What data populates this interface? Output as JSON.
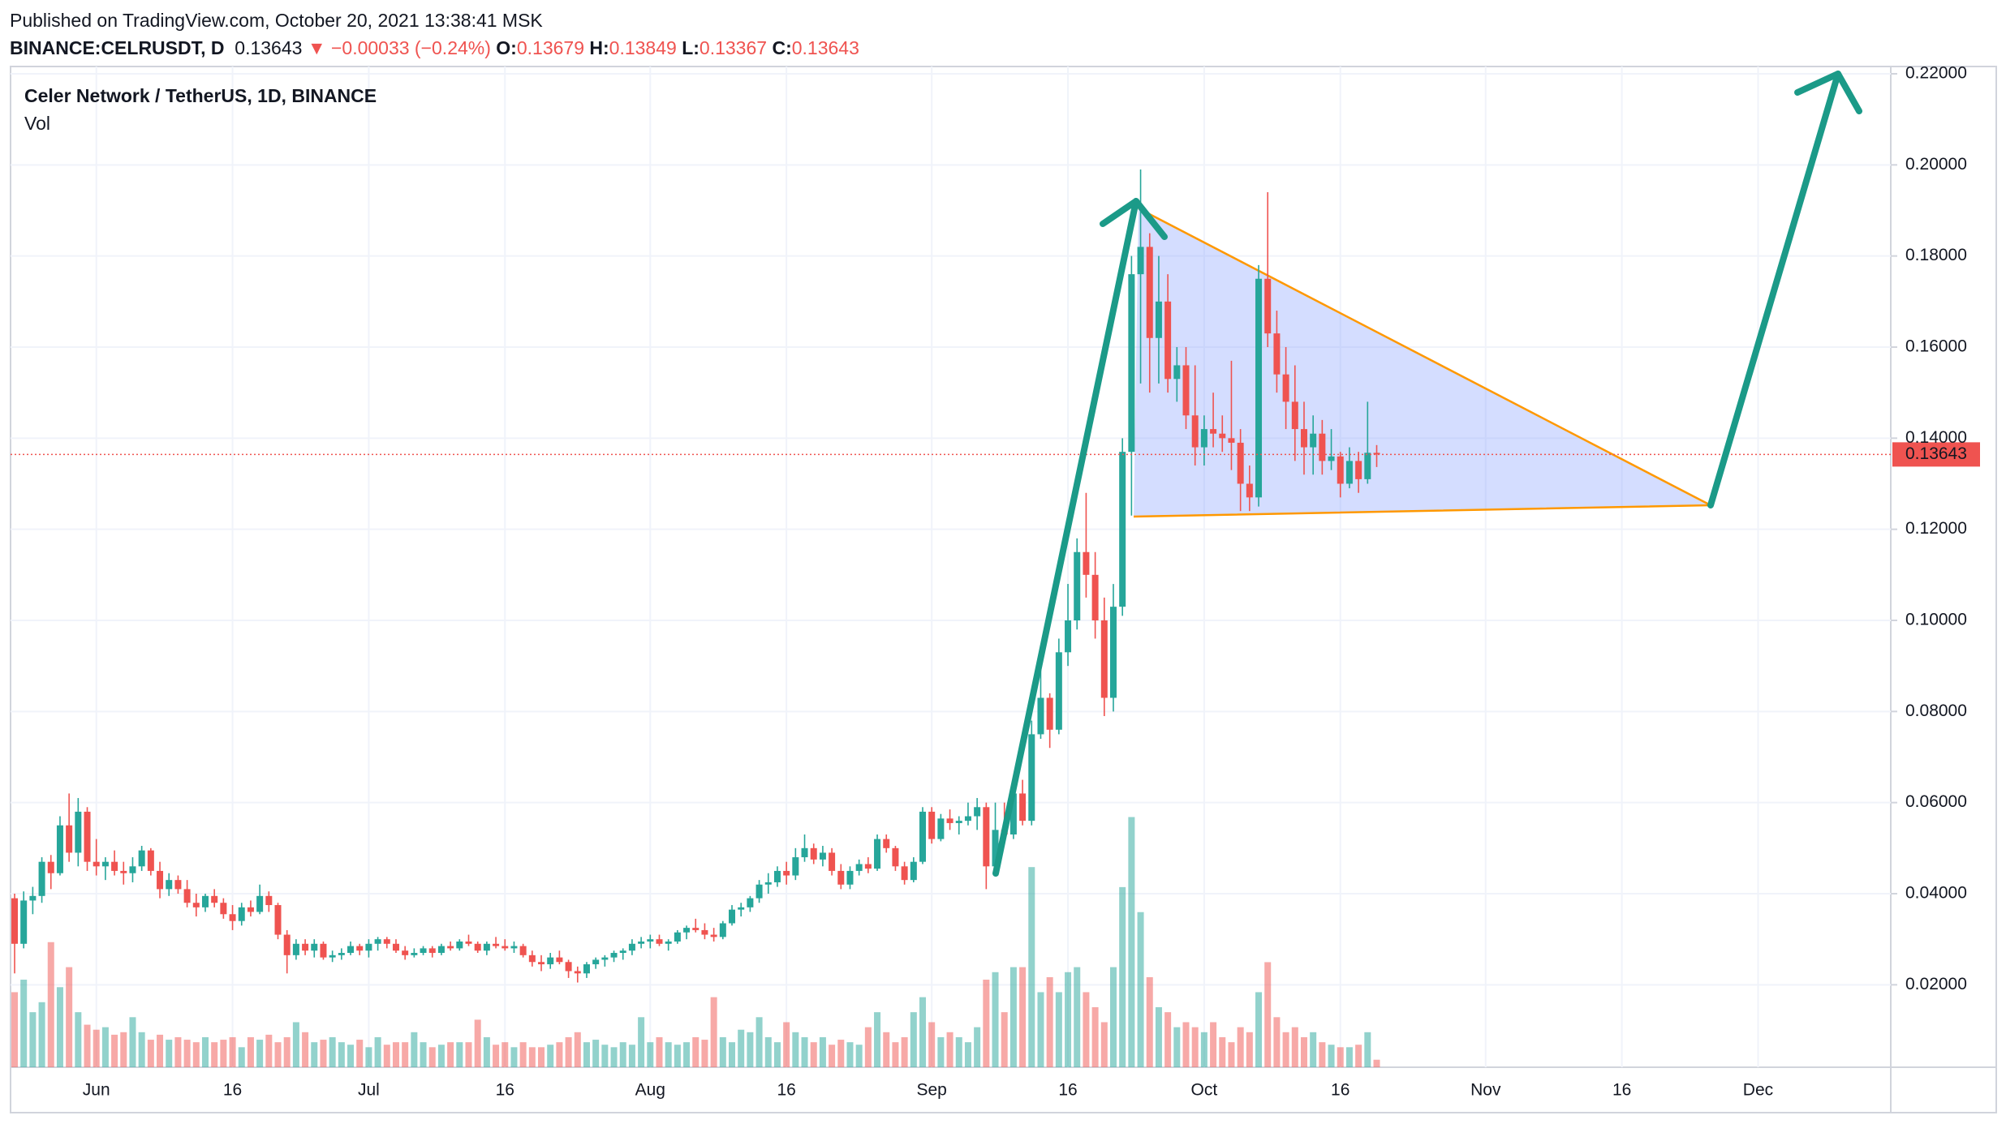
{
  "header": {
    "published": "Published on TradingView.com, October 20, 2021 13:38:41 MSK",
    "symbol": "BINANCE:CELRUSDT, D",
    "last": "0.13643",
    "change": "−0.00033 (−0.24%)",
    "ohlc": [
      {
        "key": "O:",
        "value": "0.13679"
      },
      {
        "key": "H:",
        "value": "0.13849"
      },
      {
        "key": "L:",
        "value": "0.13367"
      },
      {
        "key": "C:",
        "value": "0.13643"
      }
    ]
  },
  "chart_data": {
    "type": "candlestick",
    "title": "Celer Network / TetherUS, 1D, BINANCE",
    "volume_title": "Vol",
    "up_color": "#26a69a",
    "down_color": "#ef5350",
    "volume_up_color": "rgba(38,166,154,0.5)",
    "volume_down_color": "rgba(239,83,80,0.5)",
    "grid": true,
    "categories": [
      "May 23",
      "May 24",
      "May 25",
      "May 26",
      "May 27",
      "May 28",
      "May 29",
      "May 30",
      "May 31",
      "Jun 1",
      "Jun 2",
      "Jun 3",
      "Jun 4",
      "Jun 5",
      "Jun 6",
      "Jun 7",
      "Jun 8",
      "Jun 9",
      "Jun 10",
      "Jun 11",
      "Jun 12",
      "Jun 13",
      "Jun 14",
      "Jun 15",
      "Jun 16",
      "Jun 17",
      "Jun 18",
      "Jun 19",
      "Jun 20",
      "Jun 21",
      "Jun 22",
      "Jun 23",
      "Jun 24",
      "Jun 25",
      "Jun 26",
      "Jun 27",
      "Jun 28",
      "Jun 29",
      "Jun 30",
      "Jul 1",
      "Jul 2",
      "Jul 3",
      "Jul 4",
      "Jul 5",
      "Jul 6",
      "Jul 7",
      "Jul 8",
      "Jul 9",
      "Jul 10",
      "Jul 11",
      "Jul 12",
      "Jul 13",
      "Jul 14",
      "Jul 15",
      "Jul 16",
      "Jul 17",
      "Jul 18",
      "Jul 19",
      "Jul 20",
      "Jul 21",
      "Jul 22",
      "Jul 23",
      "Jul 24",
      "Jul 25",
      "Jul 26",
      "Jul 27",
      "Jul 28",
      "Jul 29",
      "Jul 30",
      "Jul 31",
      "Aug 1",
      "Aug 2",
      "Aug 3",
      "Aug 4",
      "Aug 5",
      "Aug 6",
      "Aug 7",
      "Aug 8",
      "Aug 9",
      "Aug 10",
      "Aug 11",
      "Aug 12",
      "Aug 13",
      "Aug 14",
      "Aug 15",
      "Aug 16",
      "Aug 17",
      "Aug 18",
      "Aug 19",
      "Aug 20",
      "Aug 21",
      "Aug 22",
      "Aug 23",
      "Aug 24",
      "Aug 25",
      "Aug 26",
      "Aug 27",
      "Aug 28",
      "Aug 29",
      "Aug 30",
      "Aug 31",
      "Sep 1",
      "Sep 2",
      "Sep 3",
      "Sep 4",
      "Sep 5",
      "Sep 6",
      "Sep 7",
      "Sep 8",
      "Sep 9",
      "Sep 10",
      "Sep 11",
      "Sep 12",
      "Sep 13",
      "Sep 14",
      "Sep 15",
      "Sep 16",
      "Sep 17",
      "Sep 18",
      "Sep 19",
      "Sep 20",
      "Sep 21",
      "Sep 22",
      "Sep 23",
      "Sep 24",
      "Sep 25",
      "Sep 26",
      "Sep 27",
      "Sep 28",
      "Sep 29",
      "Sep 30",
      "Oct 1",
      "Oct 2",
      "Oct 3",
      "Oct 4",
      "Oct 5",
      "Oct 6",
      "Oct 7",
      "Oct 8",
      "Oct 9",
      "Oct 10",
      "Oct 11",
      "Oct 12",
      "Oct 13",
      "Oct 14",
      "Oct 15",
      "Oct 16",
      "Oct 17",
      "Oct 18",
      "Oct 19",
      "Oct 20"
    ],
    "ohlc": [
      [
        0.039,
        0.04,
        0.0225,
        0.029
      ],
      [
        0.029,
        0.0405,
        0.028,
        0.0385
      ],
      [
        0.0385,
        0.0415,
        0.0355,
        0.0395
      ],
      [
        0.0395,
        0.048,
        0.038,
        0.047
      ],
      [
        0.047,
        0.0485,
        0.041,
        0.0445
      ],
      [
        0.0445,
        0.057,
        0.044,
        0.055
      ],
      [
        0.055,
        0.062,
        0.047,
        0.049
      ],
      [
        0.049,
        0.061,
        0.046,
        0.058
      ],
      [
        0.058,
        0.059,
        0.045,
        0.047
      ],
      [
        0.047,
        0.052,
        0.044,
        0.046
      ],
      [
        0.046,
        0.048,
        0.043,
        0.047
      ],
      [
        0.047,
        0.0495,
        0.044,
        0.045
      ],
      [
        0.045,
        0.047,
        0.042,
        0.0445
      ],
      [
        0.0445,
        0.048,
        0.0425,
        0.046
      ],
      [
        0.046,
        0.0505,
        0.045,
        0.0495
      ],
      [
        0.0495,
        0.05,
        0.044,
        0.045
      ],
      [
        0.045,
        0.047,
        0.039,
        0.041
      ],
      [
        0.041,
        0.0445,
        0.0395,
        0.043
      ],
      [
        0.043,
        0.044,
        0.04,
        0.041
      ],
      [
        0.041,
        0.043,
        0.037,
        0.038
      ],
      [
        0.038,
        0.04,
        0.035,
        0.037
      ],
      [
        0.037,
        0.04,
        0.036,
        0.0395
      ],
      [
        0.0395,
        0.041,
        0.037,
        0.038
      ],
      [
        0.038,
        0.039,
        0.0345,
        0.0355
      ],
      [
        0.0355,
        0.0375,
        0.032,
        0.034
      ],
      [
        0.034,
        0.038,
        0.033,
        0.037
      ],
      [
        0.037,
        0.0385,
        0.035,
        0.036
      ],
      [
        0.036,
        0.042,
        0.0355,
        0.0395
      ],
      [
        0.0395,
        0.0405,
        0.036,
        0.0375
      ],
      [
        0.0375,
        0.038,
        0.03,
        0.031
      ],
      [
        0.031,
        0.032,
        0.0225,
        0.0265
      ],
      [
        0.0265,
        0.03,
        0.0255,
        0.029
      ],
      [
        0.029,
        0.03,
        0.0265,
        0.0275
      ],
      [
        0.0275,
        0.03,
        0.026,
        0.029
      ],
      [
        0.029,
        0.0295,
        0.0255,
        0.026
      ],
      [
        0.026,
        0.0275,
        0.025,
        0.0265
      ],
      [
        0.0265,
        0.028,
        0.0255,
        0.027
      ],
      [
        0.027,
        0.0295,
        0.0265,
        0.0285
      ],
      [
        0.0285,
        0.029,
        0.0265,
        0.0275
      ],
      [
        0.0275,
        0.03,
        0.026,
        0.029
      ],
      [
        0.029,
        0.0305,
        0.0275,
        0.03
      ],
      [
        0.03,
        0.0305,
        0.028,
        0.029
      ],
      [
        0.029,
        0.03,
        0.027,
        0.0275
      ],
      [
        0.0275,
        0.0285,
        0.0255,
        0.0265
      ],
      [
        0.0265,
        0.028,
        0.026,
        0.027
      ],
      [
        0.027,
        0.0285,
        0.0265,
        0.028
      ],
      [
        0.028,
        0.0285,
        0.026,
        0.027
      ],
      [
        0.027,
        0.029,
        0.0265,
        0.0285
      ],
      [
        0.0285,
        0.0295,
        0.0275,
        0.028
      ],
      [
        0.028,
        0.03,
        0.0275,
        0.0295
      ],
      [
        0.0295,
        0.031,
        0.0285,
        0.029
      ],
      [
        0.029,
        0.0295,
        0.027,
        0.0275
      ],
      [
        0.0275,
        0.0295,
        0.0265,
        0.029
      ],
      [
        0.029,
        0.0305,
        0.028,
        0.0285
      ],
      [
        0.0285,
        0.03,
        0.0275,
        0.028
      ],
      [
        0.028,
        0.0295,
        0.027,
        0.0285
      ],
      [
        0.0285,
        0.029,
        0.026,
        0.0265
      ],
      [
        0.0265,
        0.0275,
        0.024,
        0.025
      ],
      [
        0.025,
        0.0265,
        0.023,
        0.0245
      ],
      [
        0.0245,
        0.027,
        0.0235,
        0.026
      ],
      [
        0.026,
        0.0275,
        0.0245,
        0.025
      ],
      [
        0.025,
        0.0255,
        0.0215,
        0.023
      ],
      [
        0.023,
        0.024,
        0.0205,
        0.0225
      ],
      [
        0.0225,
        0.025,
        0.0215,
        0.0245
      ],
      [
        0.0245,
        0.026,
        0.0235,
        0.0255
      ],
      [
        0.0255,
        0.0265,
        0.024,
        0.026
      ],
      [
        0.026,
        0.0275,
        0.025,
        0.027
      ],
      [
        0.027,
        0.028,
        0.0255,
        0.0275
      ],
      [
        0.0275,
        0.03,
        0.0265,
        0.029
      ],
      [
        0.029,
        0.0305,
        0.028,
        0.0295
      ],
      [
        0.0295,
        0.031,
        0.028,
        0.03
      ],
      [
        0.03,
        0.031,
        0.0285,
        0.029
      ],
      [
        0.029,
        0.03,
        0.0275,
        0.0295
      ],
      [
        0.0295,
        0.032,
        0.029,
        0.0315
      ],
      [
        0.0315,
        0.033,
        0.03,
        0.0325
      ],
      [
        0.0325,
        0.0345,
        0.0315,
        0.032
      ],
      [
        0.032,
        0.0335,
        0.03,
        0.031
      ],
      [
        0.031,
        0.0325,
        0.0295,
        0.0305
      ],
      [
        0.0305,
        0.034,
        0.03,
        0.0335
      ],
      [
        0.0335,
        0.0375,
        0.033,
        0.0365
      ],
      [
        0.0365,
        0.038,
        0.035,
        0.037
      ],
      [
        0.037,
        0.0395,
        0.036,
        0.039
      ],
      [
        0.039,
        0.043,
        0.038,
        0.042
      ],
      [
        0.042,
        0.0445,
        0.04,
        0.0425
      ],
      [
        0.0425,
        0.046,
        0.0415,
        0.045
      ],
      [
        0.045,
        0.047,
        0.042,
        0.044
      ],
      [
        0.044,
        0.05,
        0.043,
        0.048
      ],
      [
        0.048,
        0.053,
        0.047,
        0.05
      ],
      [
        0.05,
        0.051,
        0.0465,
        0.0475
      ],
      [
        0.0475,
        0.0505,
        0.046,
        0.049
      ],
      [
        0.049,
        0.05,
        0.044,
        0.045
      ],
      [
        0.045,
        0.0465,
        0.041,
        0.042
      ],
      [
        0.042,
        0.046,
        0.041,
        0.045
      ],
      [
        0.045,
        0.0475,
        0.044,
        0.0465
      ],
      [
        0.0465,
        0.048,
        0.0445,
        0.0455
      ],
      [
        0.0455,
        0.053,
        0.045,
        0.052
      ],
      [
        0.052,
        0.053,
        0.049,
        0.05
      ],
      [
        0.05,
        0.0505,
        0.045,
        0.046
      ],
      [
        0.046,
        0.047,
        0.042,
        0.043
      ],
      [
        0.043,
        0.048,
        0.0425,
        0.047
      ],
      [
        0.047,
        0.059,
        0.0465,
        0.058
      ],
      [
        0.058,
        0.059,
        0.051,
        0.052
      ],
      [
        0.052,
        0.0575,
        0.0515,
        0.0565
      ],
      [
        0.0565,
        0.0585,
        0.054,
        0.0555
      ],
      [
        0.0555,
        0.057,
        0.053,
        0.056
      ],
      [
        0.056,
        0.06,
        0.055,
        0.057
      ],
      [
        0.057,
        0.061,
        0.054,
        0.059
      ],
      [
        0.059,
        0.06,
        0.041,
        0.046
      ],
      [
        0.046,
        0.06,
        0.044,
        0.054
      ],
      [
        0.054,
        0.06,
        0.052,
        0.053
      ],
      [
        0.053,
        0.064,
        0.052,
        0.062
      ],
      [
        0.062,
        0.065,
        0.055,
        0.056
      ],
      [
        0.056,
        0.078,
        0.055,
        0.075
      ],
      [
        0.075,
        0.09,
        0.074,
        0.083
      ],
      [
        0.083,
        0.084,
        0.072,
        0.076
      ],
      [
        0.076,
        0.096,
        0.075,
        0.093
      ],
      [
        0.093,
        0.108,
        0.09,
        0.1
      ],
      [
        0.1,
        0.118,
        0.098,
        0.115
      ],
      [
        0.115,
        0.128,
        0.105,
        0.11
      ],
      [
        0.11,
        0.115,
        0.096,
        0.1
      ],
      [
        0.1,
        0.105,
        0.079,
        0.083
      ],
      [
        0.083,
        0.108,
        0.08,
        0.103
      ],
      [
        0.103,
        0.14,
        0.101,
        0.137
      ],
      [
        0.137,
        0.18,
        0.123,
        0.176
      ],
      [
        0.176,
        0.199,
        0.152,
        0.182
      ],
      [
        0.182,
        0.185,
        0.15,
        0.162
      ],
      [
        0.162,
        0.18,
        0.152,
        0.17
      ],
      [
        0.17,
        0.176,
        0.15,
        0.153
      ],
      [
        0.153,
        0.16,
        0.148,
        0.156
      ],
      [
        0.156,
        0.16,
        0.142,
        0.145
      ],
      [
        0.145,
        0.156,
        0.134,
        0.138
      ],
      [
        0.138,
        0.145,
        0.134,
        0.142
      ],
      [
        0.142,
        0.15,
        0.138,
        0.141
      ],
      [
        0.141,
        0.145,
        0.137,
        0.14
      ],
      [
        0.14,
        0.157,
        0.133,
        0.139
      ],
      [
        0.139,
        0.142,
        0.124,
        0.13
      ],
      [
        0.13,
        0.134,
        0.124,
        0.127
      ],
      [
        0.127,
        0.178,
        0.125,
        0.175
      ],
      [
        0.175,
        0.194,
        0.16,
        0.163
      ],
      [
        0.163,
        0.168,
        0.15,
        0.154
      ],
      [
        0.154,
        0.16,
        0.142,
        0.148
      ],
      [
        0.148,
        0.156,
        0.135,
        0.142
      ],
      [
        0.142,
        0.148,
        0.132,
        0.138
      ],
      [
        0.138,
        0.145,
        0.132,
        0.141
      ],
      [
        0.141,
        0.144,
        0.132,
        0.135
      ],
      [
        0.135,
        0.142,
        0.133,
        0.136
      ],
      [
        0.136,
        0.137,
        0.127,
        0.13
      ],
      [
        0.13,
        0.138,
        0.129,
        0.135
      ],
      [
        0.135,
        0.137,
        0.128,
        0.131
      ],
      [
        0.131,
        0.148,
        0.13,
        0.1368
      ],
      [
        0.13679,
        0.13849,
        0.13367,
        0.13643
      ]
    ],
    "volume": {
      "ylim": [
        0,
        400
      ],
      "values": [
        30,
        35,
        22,
        26,
        50,
        32,
        40,
        22,
        17,
        15,
        16,
        13,
        14,
        20,
        14,
        11,
        13,
        11,
        12,
        11,
        10,
        12,
        10,
        11,
        12,
        8,
        12,
        11,
        13,
        10,
        12,
        18,
        14,
        10,
        11,
        12,
        10,
        9,
        11,
        8,
        12,
        9,
        10,
        10,
        14,
        10,
        8,
        9,
        10,
        10,
        10,
        19,
        12,
        9,
        10,
        8,
        10,
        8,
        8,
        9,
        10,
        12,
        14,
        10,
        11,
        9,
        8,
        10,
        9,
        20,
        10,
        12,
        10,
        9,
        10,
        12,
        11,
        28,
        12,
        10,
        15,
        14,
        20,
        12,
        10,
        18,
        14,
        12,
        10,
        12,
        9,
        11,
        10,
        9,
        16,
        22,
        14,
        10,
        12,
        22,
        28,
        18,
        12,
        14,
        12,
        10,
        16,
        35,
        38,
        22,
        40,
        40,
        80,
        30,
        36,
        30,
        38,
        40,
        30,
        24,
        18,
        40,
        72,
        100,
        62,
        36,
        24,
        22,
        16,
        18,
        16,
        14,
        18,
        12,
        10,
        16,
        14,
        30,
        42,
        20,
        14,
        16,
        12,
        14,
        10,
        9,
        8,
        8,
        9,
        14,
        3
      ]
    },
    "ylim": [
      0.0019,
      0.2216
    ],
    "yticks": [
      {
        "value": 0.02,
        "label": "0.02000"
      },
      {
        "value": 0.04,
        "label": "0.04000"
      },
      {
        "value": 0.06,
        "label": "0.06000"
      },
      {
        "value": 0.08,
        "label": "0.08000"
      },
      {
        "value": 0.1,
        "label": "0.10000"
      },
      {
        "value": 0.12,
        "label": "0.12000"
      },
      {
        "value": 0.14,
        "label": "0.14000"
      },
      {
        "value": 0.16,
        "label": "0.16000"
      },
      {
        "value": 0.18,
        "label": "0.18000"
      },
      {
        "value": 0.2,
        "label": "0.20000"
      },
      {
        "value": 0.22,
        "label": "0.22000"
      }
    ],
    "xticks": [
      {
        "value": "Jun 1",
        "label": "Jun"
      },
      {
        "value": "Jun 16",
        "label": "16"
      },
      {
        "value": "Jul 1",
        "label": "Jul"
      },
      {
        "value": "Jul 16",
        "label": "16"
      },
      {
        "value": "Aug 1",
        "label": "Aug"
      },
      {
        "value": "Aug 16",
        "label": "16"
      },
      {
        "value": "Sep 1",
        "label": "Sep"
      },
      {
        "value": "Sep 16",
        "label": "16"
      },
      {
        "value": "Oct 1",
        "label": "Oct"
      },
      {
        "value": "Oct 16",
        "label": "16"
      },
      {
        "value": "Nov 1",
        "label": "Nov"
      },
      {
        "value": "Nov 16",
        "label": "16"
      },
      {
        "value": "Dec 1",
        "label": "Dec"
      }
    ],
    "last_price": {
      "value": 0.13643,
      "label": "0.13643"
    },
    "last_price_color": "#ef5350"
  }
}
